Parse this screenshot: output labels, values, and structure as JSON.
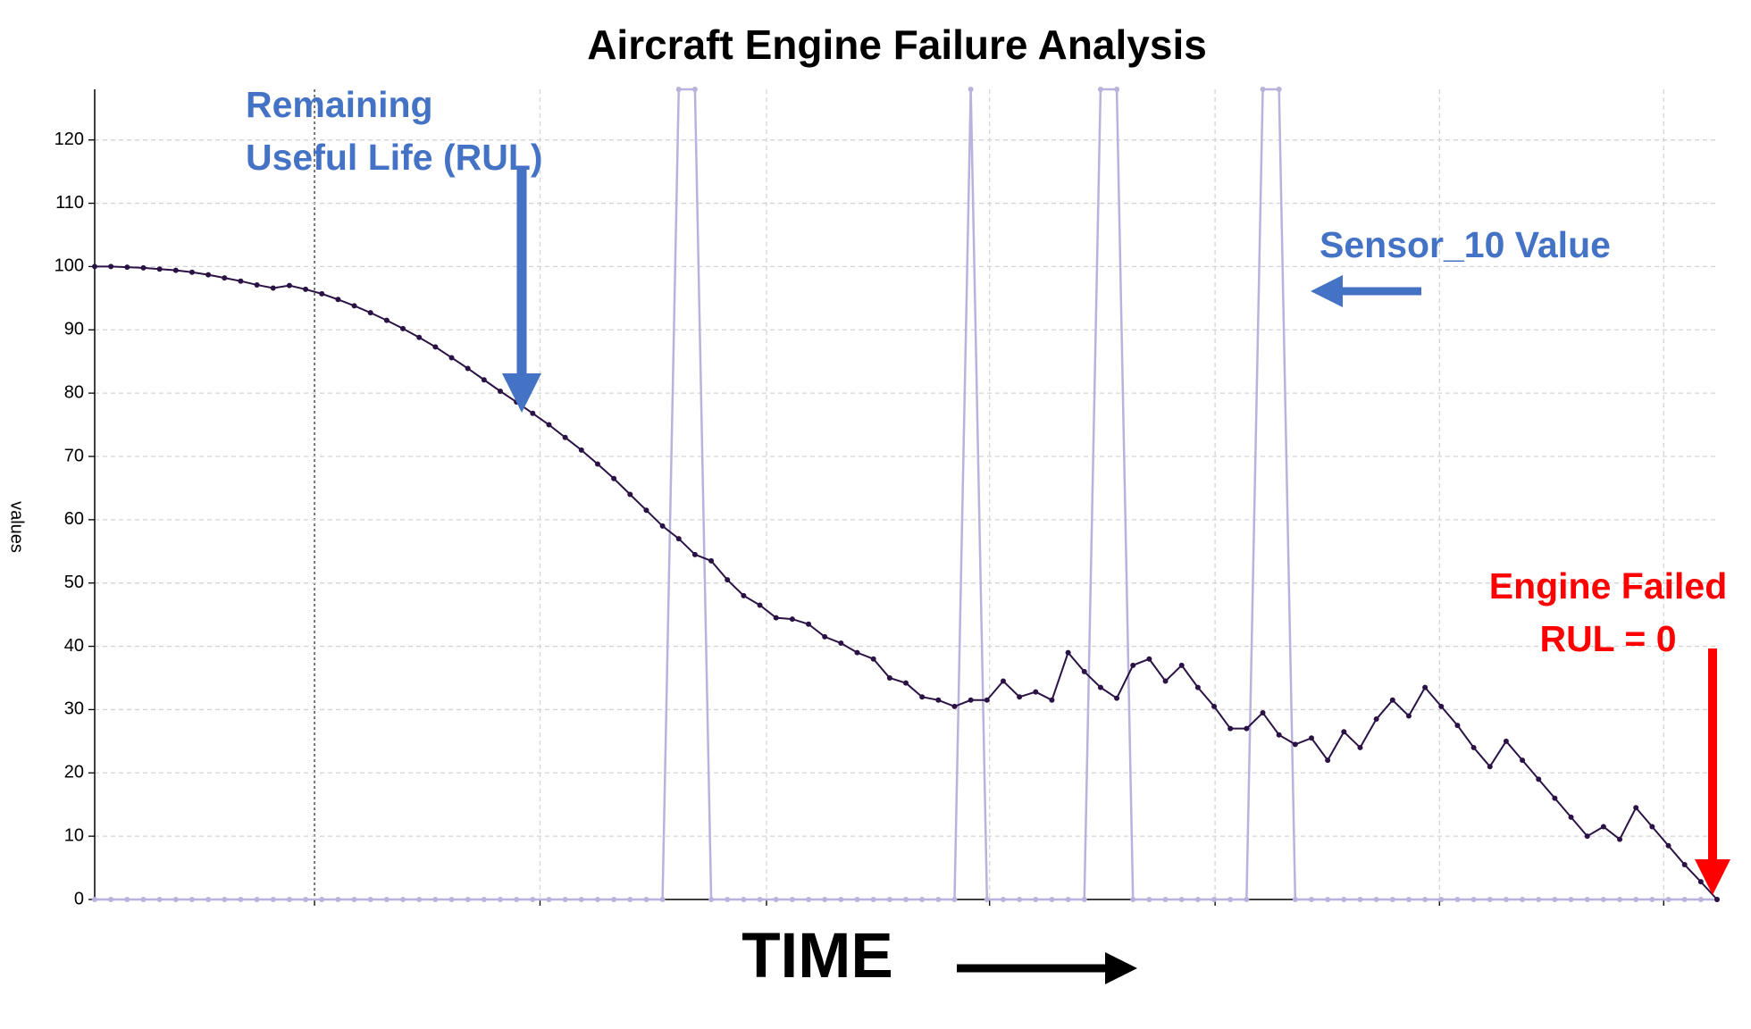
{
  "chart_data": {
    "type": "line",
    "title": "Aircraft Engine Failure Analysis",
    "y_label": "values",
    "x_label": "TIME",
    "annotations": {
      "rul": [
        "Remaining",
        "Useful Life (RUL)"
      ],
      "sensor": [
        "Sensor_10 Value"
      ],
      "failed": [
        "Engine Failed",
        "RUL = 0"
      ]
    },
    "ylim": [
      0,
      128
    ],
    "yticks": [
      0,
      10,
      20,
      30,
      40,
      50,
      60,
      70,
      80,
      90,
      100,
      110,
      120
    ],
    "grid": true,
    "series": [
      {
        "color": "#2b1245",
        "values": [
          100,
          100,
          99.9,
          99.8,
          99.6,
          99.4,
          99.1,
          98.7,
          98.2,
          97.7,
          97.1,
          96.6,
          97,
          96.4,
          95.7,
          94.8,
          93.8,
          92.7,
          91.5,
          90.2,
          88.8,
          87.3,
          85.6,
          83.9,
          82.1,
          80.3,
          78.6,
          76.8,
          75,
          73,
          71,
          68.8,
          66.5,
          64,
          61.5,
          59,
          57,
          54.5,
          53.5,
          50.5,
          48,
          46.5,
          44.5,
          44.3,
          43.5,
          41.5,
          40.5,
          39,
          38,
          35,
          34.2,
          32,
          31.5,
          30.5,
          31.5,
          31.5,
          34.5,
          32,
          32.8,
          31.5,
          39,
          36,
          33.5,
          31.8,
          37,
          38,
          34.5,
          37,
          33.5,
          30.5,
          27,
          27,
          29.5,
          26,
          24.5,
          25.5,
          22,
          26.5,
          24,
          28.5,
          31.5,
          29,
          33.5,
          30.5,
          27.5,
          24,
          21,
          25,
          22,
          19,
          16,
          13,
          10,
          11.5,
          9.5,
          14.5,
          11.5,
          8.5,
          5.5,
          2.8,
          0
        ]
      },
      {
        "color": "#b7b3dc",
        "values": [
          0,
          0,
          0,
          0,
          0,
          0,
          0,
          0,
          0,
          0,
          0,
          0,
          0,
          0,
          0,
          0,
          0,
          0,
          0,
          0,
          0,
          0,
          0,
          0,
          0,
          0,
          0,
          0,
          0,
          0,
          0,
          0,
          0,
          0,
          0,
          0,
          128,
          128,
          0,
          0,
          0,
          0,
          0,
          0,
          0,
          0,
          0,
          0,
          0,
          0,
          0,
          0,
          0,
          0,
          128,
          0,
          0,
          0,
          0,
          0,
          0,
          0,
          128,
          128,
          0,
          0,
          0,
          0,
          0,
          0,
          0,
          0,
          128,
          128,
          0,
          0,
          0,
          0,
          0,
          0,
          0,
          0,
          0,
          0,
          0,
          0,
          0,
          0,
          0,
          0,
          0,
          0,
          0,
          0,
          0,
          0,
          0,
          0,
          0,
          0,
          0
        ]
      }
    ]
  }
}
